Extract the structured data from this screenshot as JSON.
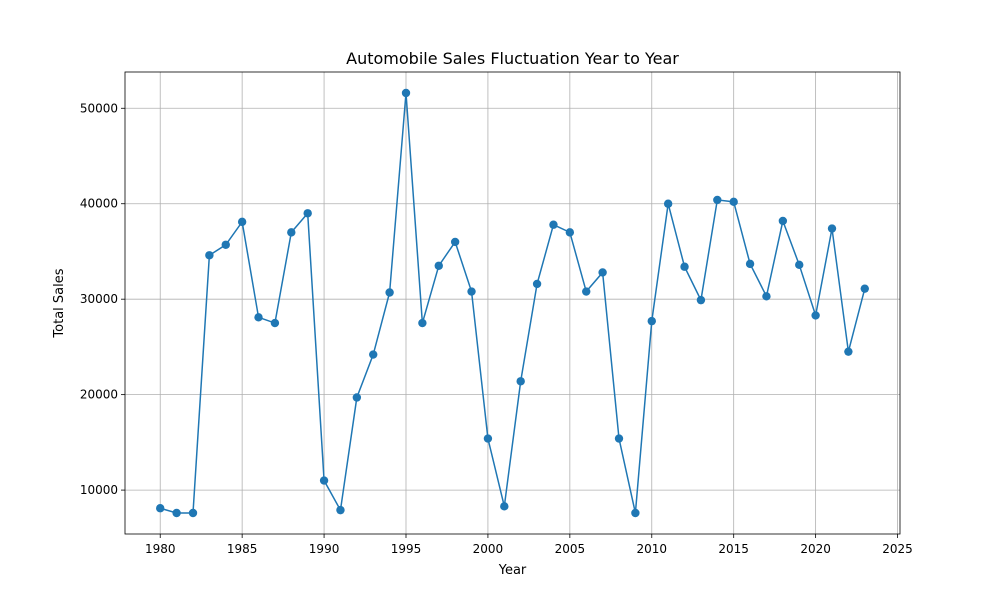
{
  "chart_data": {
    "type": "line",
    "title": "Automobile Sales Fluctuation Year to Year",
    "xlabel": "Year",
    "ylabel": "Total Sales",
    "xlim": [
      1977.85,
      2025.15
    ],
    "ylim": [
      5400,
      53800
    ],
    "xticks": [
      1980,
      1985,
      1990,
      1995,
      2000,
      2005,
      2010,
      2015,
      2020,
      2025
    ],
    "yticks": [
      10000,
      20000,
      30000,
      40000,
      50000
    ],
    "grid": true,
    "marker": "circle",
    "color": "#1f77b4",
    "series": [
      {
        "x": [
          1980,
          1981,
          1982,
          1983,
          1984,
          1985,
          1986,
          1987,
          1988,
          1989,
          1990,
          1991,
          1992,
          1993,
          1994,
          1995,
          1996,
          1997,
          1998,
          1999,
          2000,
          2001,
          2002,
          2003,
          2004,
          2005,
          2006,
          2007,
          2008,
          2009,
          2010,
          2011,
          2012,
          2013,
          2014,
          2015,
          2016,
          2017,
          2018,
          2019,
          2020,
          2021,
          2022,
          2023
        ],
        "values": [
          8100,
          7600,
          7600,
          34600,
          35700,
          38100,
          28100,
          27500,
          37000,
          39000,
          11000,
          7900,
          19700,
          24200,
          30700,
          51600,
          27500,
          33500,
          36000,
          30800,
          15400,
          8300,
          21400,
          31600,
          37800,
          37000,
          30800,
          32800,
          15400,
          7600,
          27700,
          40000,
          33400,
          29900,
          40400,
          40200,
          33700,
          30300,
          38200,
          33600,
          28300,
          37400,
          24500,
          31100
        ]
      }
    ]
  }
}
